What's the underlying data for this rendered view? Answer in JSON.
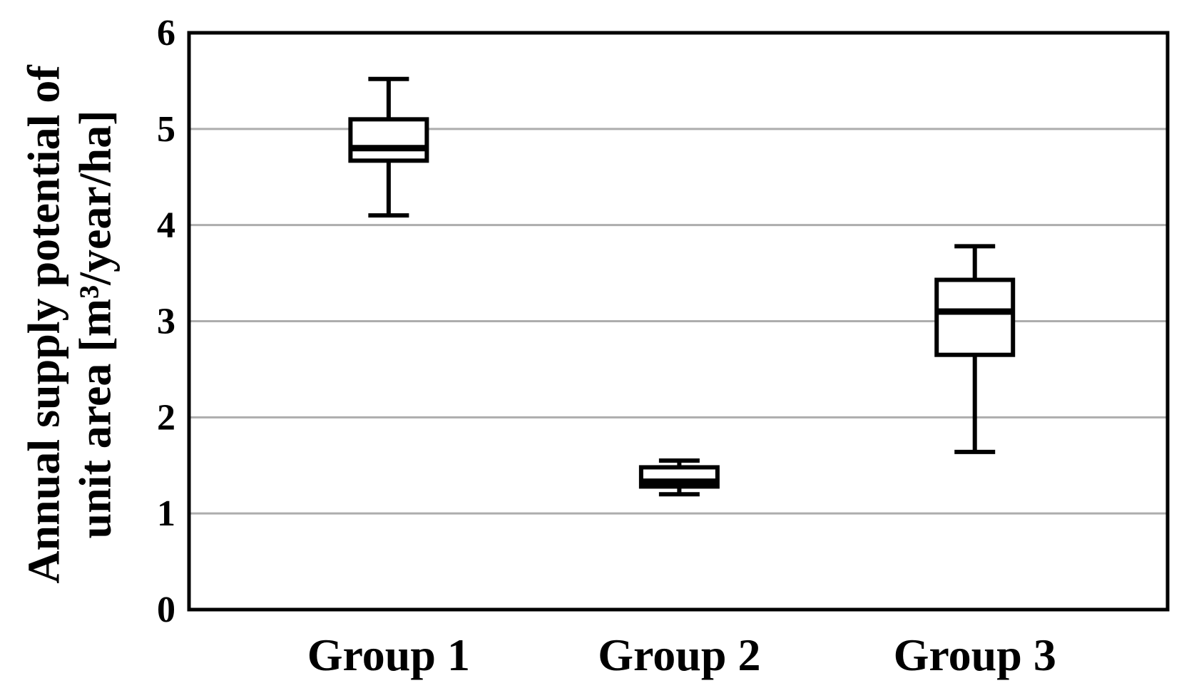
{
  "chart_data": {
    "type": "boxplot",
    "title": "",
    "ylabel": "Annual supply potential of unit area [m³/year/ha]",
    "ylabel_lines": [
      "Annual supply potential of",
      "unit area [m³/year/ha]"
    ],
    "xlabel": "",
    "categories": [
      "Group 1",
      "Group 2",
      "Group 3"
    ],
    "y_ticks": [
      "0",
      "1",
      "2",
      "3",
      "4",
      "5",
      "6"
    ],
    "ylim": [
      0,
      6
    ],
    "grid": {
      "horizontal_gridline_values": [
        1,
        2,
        3,
        4,
        5
      ],
      "gridlines_on": true
    },
    "legend": "none",
    "series": [
      {
        "name": "Group 1",
        "min": 4.1,
        "q1": 4.67,
        "median": 4.8,
        "q3": 5.1,
        "max": 5.52
      },
      {
        "name": "Group 2",
        "min": 1.2,
        "q1": 1.28,
        "median": 1.33,
        "q3": 1.48,
        "max": 1.55
      },
      {
        "name": "Group 3",
        "min": 1.64,
        "q1": 2.65,
        "median": 3.1,
        "q3": 3.43,
        "max": 3.78
      }
    ],
    "colors": {
      "background": "#ffffff",
      "frame": "#000000",
      "gridline": "#adadad",
      "box_fill": "#ffffff",
      "box_stroke": "#000000",
      "median": "#000000",
      "whisker": "#000000",
      "text": "#000000"
    }
  }
}
